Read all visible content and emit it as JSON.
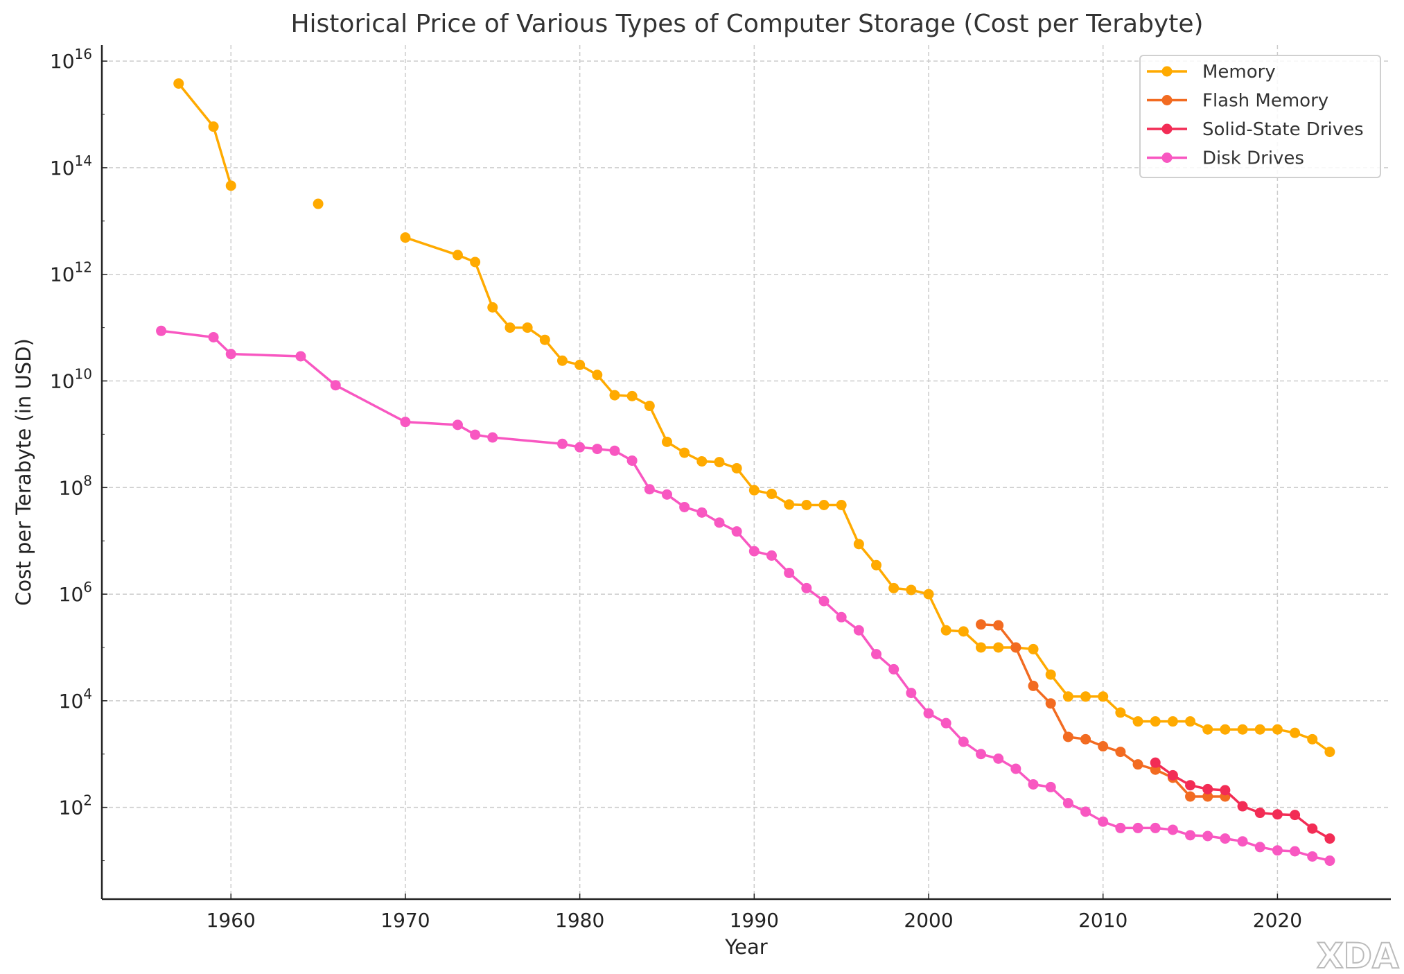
{
  "chart_data": {
    "type": "line",
    "title": "Historical Price of Various Types of Computer Storage (Cost per Terabyte)",
    "xlabel": "Year",
    "ylabel": "Cost per Terabyte (in USD)",
    "xlim": [
      1952.6,
      2026.5
    ],
    "ylim": [
      1.9,
      2e+16
    ],
    "yscale": "log",
    "grid": true,
    "legend_position": "top-right",
    "xticks": [
      1960,
      1970,
      1980,
      1990,
      2000,
      2010,
      2020
    ],
    "yticks": [
      2,
      4,
      6,
      8,
      10,
      12,
      14,
      16
    ],
    "ytick_base": "10",
    "series": [
      {
        "name": "Memory",
        "color": "#FFAA00",
        "points": [
          [
            1957,
            3800000000000000.0
          ],
          [
            1959,
            590000000000000.0
          ],
          [
            1960,
            46000000000000.0
          ],
          [
            1961,
            null
          ],
          [
            1965,
            21000000000000.0
          ],
          [
            1966,
            null
          ],
          [
            1970,
            4900000000000.0
          ],
          [
            1973,
            2300000000000.0
          ],
          [
            1974,
            1700000000000.0
          ],
          [
            1975,
            240000000000.0
          ],
          [
            1976,
            100000000000.0
          ],
          [
            1977,
            100000000000.0
          ],
          [
            1978,
            59000000000.0
          ],
          [
            1979,
            24000000000.0
          ],
          [
            1980,
            20000000000.0
          ],
          [
            1981,
            13000000000.0
          ],
          [
            1982,
            5400000000.0
          ],
          [
            1983,
            5200000000.0
          ],
          [
            1984,
            3400000000.0
          ],
          [
            1985,
            720000000.0
          ],
          [
            1986,
            450000000.0
          ],
          [
            1987,
            310000000.0
          ],
          [
            1988,
            300000000.0
          ],
          [
            1989,
            230000000.0
          ],
          [
            1990,
            89000000.0
          ],
          [
            1991,
            76000000.0
          ],
          [
            1992,
            48000000.0
          ],
          [
            1993,
            47000000.0
          ],
          [
            1994,
            47000000.0
          ],
          [
            1995,
            47000000.0
          ],
          [
            1996,
            8700000.0
          ],
          [
            1997,
            3500000.0
          ],
          [
            1998,
            1300000.0
          ],
          [
            1999,
            1200000.0
          ],
          [
            2000,
            1000000.0
          ],
          [
            2001,
            210000.0
          ],
          [
            2002,
            200000.0
          ],
          [
            2003,
            100000.0
          ],
          [
            2004,
            100000.0
          ],
          [
            2005,
            100000.0
          ],
          [
            2006,
            93000.0
          ],
          [
            2007,
            31000.0
          ],
          [
            2008,
            12000.0
          ],
          [
            2009,
            12000.0
          ],
          [
            2010,
            12000.0
          ],
          [
            2011,
            6000.0
          ],
          [
            2012,
            4100.0
          ],
          [
            2013,
            4100.0
          ],
          [
            2014,
            4100.0
          ],
          [
            2015,
            4100.0
          ],
          [
            2016,
            2900.0
          ],
          [
            2017,
            2900.0
          ],
          [
            2018,
            2900.0
          ],
          [
            2019,
            2900.0
          ],
          [
            2020,
            2900.0
          ],
          [
            2021,
            2500.0
          ],
          [
            2022,
            1900.0
          ],
          [
            2023,
            1100.0
          ]
        ]
      },
      {
        "name": "Flash Memory",
        "color": "#F26B21",
        "points": [
          [
            2003,
            270000.0
          ],
          [
            2004,
            260000.0
          ],
          [
            2005,
            100000.0
          ],
          [
            2006,
            19000.0
          ],
          [
            2007,
            8900.0
          ],
          [
            2008,
            2100.0
          ],
          [
            2009,
            1900.0
          ],
          [
            2010,
            1400.0
          ],
          [
            2011,
            1100.0
          ],
          [
            2012,
            640
          ],
          [
            2013,
            510
          ],
          [
            2014,
            360
          ],
          [
            2015,
            160
          ],
          [
            2016,
            160
          ],
          [
            2017,
            160
          ]
        ]
      },
      {
        "name": "Solid-State Drives",
        "color": "#F22C55",
        "points": [
          [
            2013,
            690
          ],
          [
            2014,
            400
          ],
          [
            2015,
            260
          ],
          [
            2016,
            220
          ],
          [
            2017,
            210
          ],
          [
            2018,
            105
          ],
          [
            2019,
            79
          ],
          [
            2020,
            74
          ],
          [
            2021,
            72
          ],
          [
            2022,
            40
          ],
          [
            2023,
            26
          ]
        ]
      },
      {
        "name": "Disk Drives",
        "color": "#F857C1",
        "points": [
          [
            1956,
            87000000000.0
          ],
          [
            1959,
            66000000000.0
          ],
          [
            1960,
            32000000000.0
          ],
          [
            1964,
            29000000000.0
          ],
          [
            1966,
            8300000000.0
          ],
          [
            1970,
            1700000000.0
          ],
          [
            1973,
            1500000000.0
          ],
          [
            1974,
            980000000.0
          ],
          [
            1975,
            870000000.0
          ],
          [
            1979,
            660000000.0
          ],
          [
            1980,
            570000000.0
          ],
          [
            1981,
            530000000.0
          ],
          [
            1982,
            490000000.0
          ],
          [
            1983,
            320000000.0
          ],
          [
            1984,
            93000000.0
          ],
          [
            1985,
            74000000.0
          ],
          [
            1986,
            43000000.0
          ],
          [
            1987,
            34000000.0
          ],
          [
            1988,
            22000000.0
          ],
          [
            1989,
            15000000.0
          ],
          [
            1990,
            6400000.0
          ],
          [
            1991,
            5300000.0
          ],
          [
            1992,
            2500000.0
          ],
          [
            1993,
            1300000.0
          ],
          [
            1994,
            740000.0
          ],
          [
            1995,
            370000.0
          ],
          [
            1996,
            210000.0
          ],
          [
            1997,
            75000.0
          ],
          [
            1998,
            39000.0
          ],
          [
            1999,
            14000.0
          ],
          [
            2000,
            5800.0
          ],
          [
            2001,
            3800.0
          ],
          [
            2002,
            1700.0
          ],
          [
            2003,
            1000.0
          ],
          [
            2004,
            820
          ],
          [
            2005,
            530
          ],
          [
            2006,
            270
          ],
          [
            2007,
            240
          ],
          [
            2008,
            120
          ],
          [
            2009,
            83
          ],
          [
            2010,
            54
          ],
          [
            2011,
            41
          ],
          [
            2012,
            41
          ],
          [
            2013,
            41
          ],
          [
            2014,
            38
          ],
          [
            2015,
            30
          ],
          [
            2016,
            29
          ],
          [
            2017,
            26
          ],
          [
            2018,
            23
          ],
          [
            2019,
            18
          ],
          [
            2020,
            15.6
          ],
          [
            2021,
            15
          ],
          [
            2022,
            12
          ],
          [
            2023,
            10
          ]
        ]
      }
    ]
  },
  "watermark": "XDA"
}
